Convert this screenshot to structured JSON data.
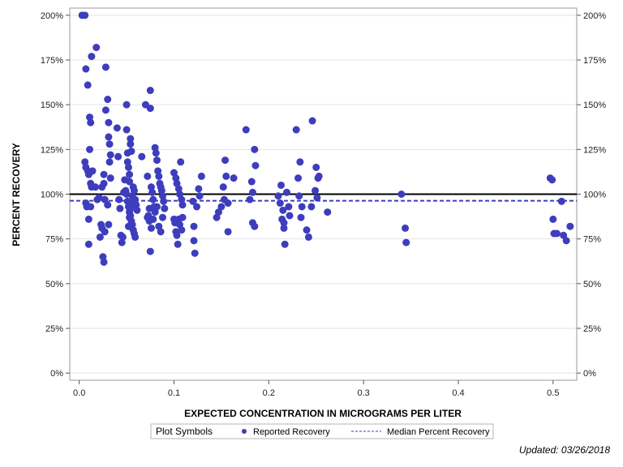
{
  "chart_data": {
    "type": "scatter",
    "xlabel": "EXPECTED CONCENTRATION IN MICROGRAMS PER LITER",
    "ylabel": "PERCENT RECOVERY",
    "xlim": [
      -0.01,
      0.525
    ],
    "ylim": [
      -4,
      204
    ],
    "x_ticks": [
      0,
      0.1,
      0.2,
      0.3,
      0.4,
      0.5
    ],
    "x_tick_labels": [
      "0.0",
      "0.1",
      "0.2",
      "0.3",
      "0.4",
      "0.5"
    ],
    "y_ticks": [
      0,
      25,
      50,
      75,
      100,
      125,
      150,
      175,
      200
    ],
    "y_tick_labels": [
      "0%",
      "25%",
      "50%",
      "75%",
      "100%",
      "125%",
      "150%",
      "175%",
      "200%"
    ],
    "grid": true,
    "reference_line": {
      "y": 100,
      "color": "#000000"
    },
    "median_line": {
      "y": 96.3,
      "color": "#3d3dbd",
      "style": "dashed"
    },
    "series": [
      {
        "name": "Reported Recovery",
        "color": "#3d3dbd",
        "points": [
          [
            0.003,
            200
          ],
          [
            0.006,
            200
          ],
          [
            0.007,
            170
          ],
          [
            0.009,
            161
          ],
          [
            0.011,
            143
          ],
          [
            0.012,
            140
          ],
          [
            0.013,
            177
          ],
          [
            0.018,
            182
          ],
          [
            0.006,
            118
          ],
          [
            0.009,
            113
          ],
          [
            0.01,
            111
          ],
          [
            0.011,
            125
          ],
          [
            0.012,
            106
          ],
          [
            0.013,
            104
          ],
          [
            0.014,
            113
          ],
          [
            0.007,
            115
          ],
          [
            0.007,
            95
          ],
          [
            0.008,
            93
          ],
          [
            0.01,
            86
          ],
          [
            0.01,
            72
          ],
          [
            0.012,
            93
          ],
          [
            0.017,
            104
          ],
          [
            0.019,
            97
          ],
          [
            0.021,
            98
          ],
          [
            0.022,
            76
          ],
          [
            0.023,
            83
          ],
          [
            0.024,
            81
          ],
          [
            0.025,
            65
          ],
          [
            0.026,
            62
          ],
          [
            0.027,
            79
          ],
          [
            0.024,
            104
          ],
          [
            0.026,
            106
          ],
          [
            0.026,
            111
          ],
          [
            0.027,
            97
          ],
          [
            0.028,
            147
          ],
          [
            0.028,
            171
          ],
          [
            0.03,
            153
          ],
          [
            0.031,
            140
          ],
          [
            0.031,
            132
          ],
          [
            0.032,
            128
          ],
          [
            0.033,
            122
          ],
          [
            0.032,
            118
          ],
          [
            0.033,
            109
          ],
          [
            0.03,
            94
          ],
          [
            0.031,
            83
          ],
          [
            0.04,
            137
          ],
          [
            0.041,
            121
          ],
          [
            0.042,
            97
          ],
          [
            0.043,
            92
          ],
          [
            0.044,
            77
          ],
          [
            0.045,
            73
          ],
          [
            0.046,
            76
          ],
          [
            0.047,
            101
          ],
          [
            0.048,
            108
          ],
          [
            0.049,
            102
          ],
          [
            0.05,
            150
          ],
          [
            0.05,
            136
          ],
          [
            0.051,
            123
          ],
          [
            0.051,
            118
          ],
          [
            0.052,
            115
          ],
          [
            0.053,
            111
          ],
          [
            0.053,
            107
          ],
          [
            0.054,
            131
          ],
          [
            0.054,
            128
          ],
          [
            0.055,
            124
          ],
          [
            0.05,
            100
          ],
          [
            0.051,
            96
          ],
          [
            0.052,
            93
          ],
          [
            0.053,
            90
          ],
          [
            0.054,
            88
          ],
          [
            0.055,
            85
          ],
          [
            0.056,
            83
          ],
          [
            0.057,
            80
          ],
          [
            0.058,
            78
          ],
          [
            0.059,
            76
          ],
          [
            0.056,
            99
          ],
          [
            0.057,
            104
          ],
          [
            0.058,
            102
          ],
          [
            0.059,
            97
          ],
          [
            0.06,
            94
          ],
          [
            0.061,
            91
          ],
          [
            0.052,
            82
          ],
          [
            0.053,
            87
          ],
          [
            0.054,
            92
          ],
          [
            0.055,
            95
          ],
          [
            0.066,
            121
          ],
          [
            0.07,
            150
          ],
          [
            0.072,
            110
          ],
          [
            0.073,
            88
          ],
          [
            0.074,
            85
          ],
          [
            0.075,
            158
          ],
          [
            0.075,
            148
          ],
          [
            0.076,
            104
          ],
          [
            0.077,
            101
          ],
          [
            0.078,
            97
          ],
          [
            0.079,
            93
          ],
          [
            0.08,
            126
          ],
          [
            0.081,
            123
          ],
          [
            0.082,
            119
          ],
          [
            0.083,
            113
          ],
          [
            0.084,
            110
          ],
          [
            0.085,
            106
          ],
          [
            0.086,
            104
          ],
          [
            0.087,
            102
          ],
          [
            0.088,
            99
          ],
          [
            0.089,
            96
          ],
          [
            0.09,
            92
          ],
          [
            0.075,
            68
          ],
          [
            0.076,
            81
          ],
          [
            0.078,
            86
          ],
          [
            0.08,
            90
          ],
          [
            0.082,
            93
          ],
          [
            0.084,
            82
          ],
          [
            0.086,
            79
          ],
          [
            0.088,
            87
          ],
          [
            0.072,
            87
          ],
          [
            0.074,
            92
          ],
          [
            0.1,
            112
          ],
          [
            0.102,
            109
          ],
          [
            0.103,
            106
          ],
          [
            0.105,
            103
          ],
          [
            0.106,
            100
          ],
          [
            0.107,
            118
          ],
          [
            0.108,
            97
          ],
          [
            0.109,
            94
          ],
          [
            0.1,
            86
          ],
          [
            0.101,
            84
          ],
          [
            0.102,
            79
          ],
          [
            0.103,
            77
          ],
          [
            0.104,
            72
          ],
          [
            0.105,
            86
          ],
          [
            0.106,
            83
          ],
          [
            0.108,
            80
          ],
          [
            0.109,
            87
          ],
          [
            0.12,
            96
          ],
          [
            0.121,
            82
          ],
          [
            0.121,
            74
          ],
          [
            0.122,
            67
          ],
          [
            0.124,
            93
          ],
          [
            0.126,
            103
          ],
          [
            0.127,
            99
          ],
          [
            0.129,
            110
          ],
          [
            0.145,
            87
          ],
          [
            0.147,
            90
          ],
          [
            0.15,
            93
          ],
          [
            0.152,
            104
          ],
          [
            0.153,
            97
          ],
          [
            0.154,
            119
          ],
          [
            0.155,
            110
          ],
          [
            0.157,
            95
          ],
          [
            0.157,
            79
          ],
          [
            0.163,
            109
          ],
          [
            0.176,
            136
          ],
          [
            0.18,
            97
          ],
          [
            0.182,
            107
          ],
          [
            0.183,
            101
          ],
          [
            0.183,
            84
          ],
          [
            0.185,
            82
          ],
          [
            0.185,
            125
          ],
          [
            0.186,
            116
          ],
          [
            0.21,
            99
          ],
          [
            0.212,
            95
          ],
          [
            0.213,
            105
          ],
          [
            0.214,
            86
          ],
          [
            0.215,
            91
          ],
          [
            0.216,
            84
          ],
          [
            0.216,
            81
          ],
          [
            0.217,
            72
          ],
          [
            0.219,
            101
          ],
          [
            0.221,
            93
          ],
          [
            0.222,
            88
          ],
          [
            0.229,
            136
          ],
          [
            0.231,
            109
          ],
          [
            0.232,
            99
          ],
          [
            0.233,
            118
          ],
          [
            0.234,
            87
          ],
          [
            0.235,
            93
          ],
          [
            0.24,
            80
          ],
          [
            0.242,
            76
          ],
          [
            0.245,
            93
          ],
          [
            0.246,
            141
          ],
          [
            0.249,
            102
          ],
          [
            0.25,
            115
          ],
          [
            0.251,
            98
          ],
          [
            0.252,
            109
          ],
          [
            0.253,
            110
          ],
          [
            0.262,
            90
          ],
          [
            0.34,
            100
          ],
          [
            0.344,
            81
          ],
          [
            0.345,
            73
          ],
          [
            0.497,
            109
          ],
          [
            0.499,
            108
          ],
          [
            0.5,
            86
          ],
          [
            0.501,
            78
          ],
          [
            0.504,
            78
          ],
          [
            0.509,
            96
          ],
          [
            0.511,
            77
          ],
          [
            0.514,
            74
          ],
          [
            0.518,
            82
          ]
        ]
      }
    ],
    "legend": {
      "title": "Plot Symbols",
      "entries": [
        "Reported Recovery",
        "Median Percent Recovery"
      ],
      "placement": "bottom-center"
    }
  },
  "footer": {
    "updated": "Updated: 03/26/2018"
  }
}
